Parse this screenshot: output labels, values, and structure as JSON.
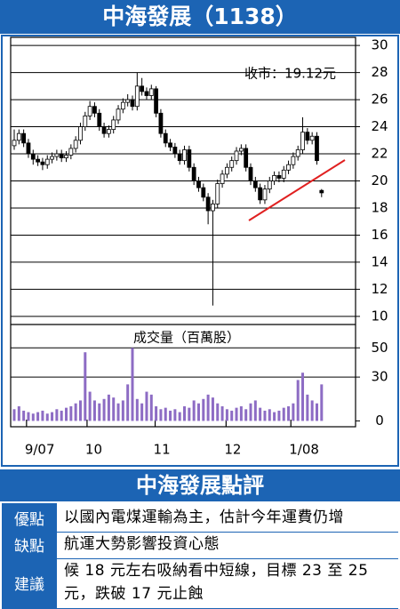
{
  "chart_data": {
    "type": "candlestick",
    "title": "中海發展（1138）",
    "annotation": "收市：19.12元",
    "volume_label": "成交量（百萬股）",
    "open": [
      22.6,
      23.0,
      23.5,
      22.8,
      22.0,
      21.6,
      21.4,
      21.2,
      21.6,
      21.8,
      22.0,
      21.7,
      21.9,
      22.4,
      23.0,
      24.0,
      24.8,
      25.5,
      25.0,
      24.0,
      23.5,
      23.8,
      24.5,
      25.3,
      25.8,
      26.0,
      25.5,
      27.0,
      26.6,
      26.3,
      26.8,
      25.0,
      23.5,
      22.8,
      22.5,
      22.0,
      21.5,
      22.3,
      21.0,
      20.0,
      19.5,
      18.8,
      17.8,
      18.3,
      19.8,
      20.5,
      21.0,
      21.5,
      22.2,
      22.4,
      21.0,
      20.0,
      19.5,
      18.6,
      19.4,
      20.0,
      20.4,
      20.2,
      20.8,
      21.2,
      21.8,
      22.3,
      23.6,
      23.0,
      23.3,
      19.3
    ],
    "high": [
      23.8,
      23.8,
      23.8,
      23.1,
      22.3,
      21.9,
      21.7,
      21.9,
      22.1,
      22.3,
      22.3,
      22.2,
      22.7,
      23.3,
      24.3,
      25.1,
      25.9,
      25.8,
      25.3,
      24.3,
      24.1,
      24.8,
      25.6,
      26.1,
      26.4,
      26.3,
      28.0,
      27.6,
      26.9,
      27.1,
      27.0,
      25.3,
      23.8,
      23.1,
      22.8,
      22.3,
      22.6,
      22.6,
      21.3,
      20.3,
      19.8,
      19.1,
      18.6,
      20.1,
      20.8,
      21.3,
      21.8,
      22.5,
      22.7,
      22.7,
      21.3,
      20.3,
      19.8,
      19.7,
      20.3,
      20.7,
      20.7,
      21.1,
      21.5,
      22.1,
      22.6,
      24.7,
      23.9,
      23.6,
      23.6,
      19.4
    ],
    "low": [
      22.3,
      22.7,
      22.5,
      21.7,
      21.2,
      21.1,
      20.8,
      20.9,
      21.3,
      21.5,
      21.4,
      21.4,
      21.6,
      22.1,
      22.7,
      23.7,
      24.5,
      24.7,
      23.7,
      23.2,
      23.2,
      23.5,
      24.2,
      25.0,
      25.5,
      25.2,
      25.2,
      26.3,
      26.0,
      26.0,
      24.7,
      23.2,
      22.5,
      22.2,
      21.7,
      21.2,
      21.2,
      20.7,
      19.7,
      19.2,
      18.5,
      16.8,
      10.8,
      18.0,
      19.5,
      20.2,
      20.7,
      21.2,
      21.9,
      20.7,
      19.7,
      19.2,
      18.3,
      18.3,
      19.1,
      19.7,
      19.9,
      19.9,
      20.5,
      20.9,
      21.5,
      22.0,
      22.7,
      22.7,
      21.2,
      18.8
    ],
    "close": [
      23.0,
      23.5,
      22.8,
      22.0,
      21.6,
      21.4,
      21.2,
      21.6,
      21.8,
      22.0,
      21.7,
      21.9,
      22.4,
      23.0,
      24.0,
      24.8,
      25.5,
      25.0,
      24.0,
      23.5,
      23.8,
      24.5,
      25.3,
      25.8,
      26.0,
      25.5,
      27.0,
      26.6,
      26.3,
      26.8,
      25.0,
      23.5,
      22.8,
      22.5,
      22.0,
      21.5,
      22.3,
      21.0,
      20.0,
      19.5,
      18.8,
      17.8,
      18.3,
      19.8,
      20.5,
      21.0,
      21.5,
      22.2,
      22.4,
      21.0,
      20.0,
      19.5,
      18.6,
      19.4,
      20.0,
      20.4,
      20.2,
      20.8,
      21.2,
      21.8,
      22.3,
      23.6,
      23.0,
      23.3,
      21.5,
      19.12
    ],
    "volume": [
      8,
      10,
      7,
      6,
      5,
      6,
      7,
      5,
      6,
      8,
      7,
      9,
      10,
      12,
      14,
      47,
      20,
      14,
      12,
      15,
      18,
      16,
      12,
      14,
      25,
      50,
      15,
      12,
      20,
      18,
      10,
      8,
      9,
      7,
      8,
      6,
      10,
      9,
      14,
      12,
      15,
      18,
      16,
      12,
      10,
      8,
      7,
      9,
      10,
      8,
      12,
      14,
      9,
      7,
      8,
      6,
      7,
      9,
      10,
      12,
      28,
      33,
      18,
      14,
      12,
      25
    ],
    "xticks": [
      {
        "value": 2.6,
        "label": "9/07"
      },
      {
        "value": 15.4,
        "label": "10"
      },
      {
        "value": 29.8,
        "label": "11"
      },
      {
        "value": 44.8,
        "label": "12"
      },
      {
        "value": 58.5,
        "label": "1/08"
      }
    ],
    "ylim": [
      9.4,
      30.6
    ],
    "yticks": [
      10,
      12,
      14,
      16,
      18,
      20,
      22,
      24,
      26,
      28,
      30
    ],
    "y2lim": [
      -4,
      66
    ],
    "y2ticks": [
      0,
      30,
      50
    ],
    "up_color": "#ffffff",
    "down_color": "#000000",
    "volume_color": "#8d6cc4"
  },
  "review": {
    "title": "中海發展點評",
    "rows": [
      [
        "優點",
        "以國內電煤運輸為主，估計今年運費仍增"
      ],
      [
        "缺點",
        "航運大勢影響投資心態"
      ],
      [
        "建議",
        "候 18 元左右吸納看中短線，目標 23 至 25 元，跌破 17 元止蝕"
      ]
    ]
  }
}
